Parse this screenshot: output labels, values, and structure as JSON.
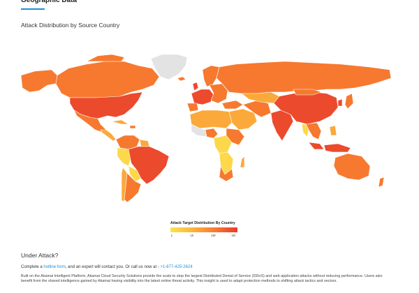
{
  "section": {
    "title": "Geographic Data",
    "map_title": "Attack Distribution by Source Country"
  },
  "legend": {
    "title": "Attack Target Distribution By Country",
    "ticks": [
      "1",
      "1k",
      "1M",
      "1B"
    ],
    "colors": [
      "#fce250",
      "#fbb43c",
      "#f77a32",
      "#ea3a2c"
    ]
  },
  "map": {
    "colors": {
      "none": "#e3e3e3",
      "low": "#fdd84a",
      "medium": "#fba93a",
      "high": "#f6792f",
      "very_high": "#ec4a2d",
      "border": "#ffffff"
    }
  },
  "footer": {
    "heading": "Under Attack?",
    "contact_prefix": "Complete a ",
    "hotline_link": "hotline form",
    "contact_middle": ", and an expert will contact you. Or call us now at - ",
    "phone": "+1-877-425-2624",
    "description": "Built on the Akamai Intelligent Platform, Akamai Cloud Security Solutions provide the scale to stop the largest Distributed Denial of Service (DDoS) and web application attacks without reducing performance. Users also benefit from the shared intelligence gained by Akamai having visibility into the latest online threat activity. This insight is used to adapt protection methods to shifting attack tactics and vectors."
  }
}
